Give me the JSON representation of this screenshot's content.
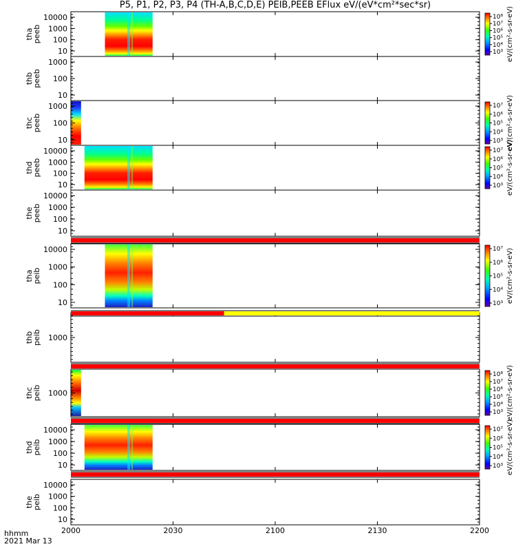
{
  "chart_data": {
    "type": "heatmap",
    "title": "P5, P1, P2, P3, P4 (TH-A,B,C,D,E) PEIB,PEEB EFlux eV/(eV*cm²*sec*sr)",
    "time_axis": {
      "ticks": [
        "2000",
        "2030",
        "2100",
        "2130",
        "2200"
      ],
      "label_line1": "hhmm",
      "label_line2": "2021 Mar 13",
      "range": [
        "20:00",
        "22:00"
      ]
    },
    "panels": [
      {
        "probe": "tha",
        "ylabel": [
          "tha",
          "peeb"
        ],
        "y_ticks": [
          "10000",
          "1000",
          "100",
          "10"
        ],
        "data_window": [
          "20:10",
          "20:24"
        ],
        "colorbar": {
          "ticks": [
            "10⁸",
            "10⁷",
            "10⁶",
            "10⁵",
            "10⁴",
            "10³"
          ],
          "label": "eV/(cm²-s-sr-eV)"
        },
        "has_data": true,
        "style": "electron"
      },
      {
        "probe": "thb",
        "ylabel": [
          "thb",
          "peeb"
        ],
        "y_ticks": [
          "1000",
          "100",
          "10"
        ],
        "has_data": false,
        "colorbar": null
      },
      {
        "probe": "thc",
        "ylabel": [
          "thc",
          "peeb"
        ],
        "y_ticks": [
          "1000",
          "100",
          "10"
        ],
        "data_window": [
          "20:00",
          "20:03"
        ],
        "colorbar": {
          "ticks": [
            "10⁷",
            "10⁶",
            "10⁵",
            "10⁴",
            "10³"
          ],
          "label": "eV/(cm²-s-sr-eV)"
        },
        "has_data": true,
        "style": "electron"
      },
      {
        "probe": "thd",
        "ylabel": [
          "thd",
          "peeb"
        ],
        "y_ticks": [
          "10000",
          "1000",
          "100",
          "10"
        ],
        "data_window": [
          "20:04",
          "20:24"
        ],
        "colorbar": {
          "ticks": [
            "10⁷",
            "10⁶",
            "10⁵",
            "10⁴",
            "10³"
          ],
          "label": "eV/(cm²-s-sr-eV)"
        },
        "has_data": true,
        "style": "electron"
      },
      {
        "probe": "the",
        "ylabel": [
          "the",
          "peeb"
        ],
        "y_ticks": [
          "10000",
          "1000",
          "100",
          "10"
        ],
        "has_data": false,
        "colorbar": null
      },
      {
        "probe": "tha",
        "ylabel": [
          "tha",
          "peib"
        ],
        "y_ticks": [
          "10000",
          "1000",
          "100",
          "10"
        ],
        "data_window": [
          "20:10",
          "20:24"
        ],
        "colorbar": {
          "ticks": [
            "10⁷",
            "10⁶",
            "10⁵",
            "10⁴",
            "10³"
          ],
          "label": "eV/(cm²-s-sr-eV)"
        },
        "has_data": true,
        "style": "ion"
      },
      {
        "probe": "thb",
        "ylabel": [
          "thb",
          "peib"
        ],
        "y_ticks": [
          "1000"
        ],
        "has_data": false,
        "colorbar": null
      },
      {
        "probe": "thc",
        "ylabel": [
          "thc",
          "peib"
        ],
        "y_ticks": [
          "1000"
        ],
        "data_window": [
          "20:00",
          "20:03"
        ],
        "colorbar": {
          "ticks": [
            "10⁸",
            "10⁷",
            "10⁶",
            "10⁵",
            "10⁴",
            "10³"
          ],
          "label": "eV/(cm²-s-sr-eV)"
        },
        "has_data": true,
        "style": "ion"
      },
      {
        "probe": "thd",
        "ylabel": [
          "thd",
          "peib"
        ],
        "y_ticks": [
          "10000",
          "1000",
          "100",
          "10"
        ],
        "data_window": [
          "20:04",
          "20:24"
        ],
        "colorbar": {
          "ticks": [
            "10⁷",
            "10⁶",
            "10⁵",
            "10⁴",
            "10³"
          ],
          "label": "eV/(cm²-s-sr-eV)"
        },
        "has_data": true,
        "style": "ion"
      },
      {
        "probe": "the",
        "ylabel": [
          "the",
          "peib"
        ],
        "y_ticks": [
          "10000",
          "1000",
          "100",
          "10"
        ],
        "has_data": false,
        "colorbar": null
      }
    ],
    "status_bars": [
      {
        "after_panel": 4,
        "segments": [
          {
            "from": "20:00",
            "to": "22:00",
            "color": "#ff0000"
          }
        ]
      },
      {
        "after_panel": 5,
        "segments": [
          {
            "from": "20:00",
            "to": "20:45",
            "color": "#ff0000"
          },
          {
            "from": "20:45",
            "to": "22:00",
            "color": "#ffff00"
          }
        ]
      },
      {
        "after_panel": 6,
        "segments": [
          {
            "from": "20:00",
            "to": "22:00",
            "color": "#ff0000"
          }
        ]
      },
      {
        "after_panel": 7,
        "segments": [
          {
            "from": "20:00",
            "to": "22:00",
            "color": "#ff0000"
          }
        ]
      },
      {
        "after_panel": 8,
        "segments": [
          {
            "from": "20:00",
            "to": "22:00",
            "color": "#ff0000"
          }
        ]
      }
    ],
    "colors": {
      "frame": "#000000",
      "background": "#ffffff"
    }
  }
}
